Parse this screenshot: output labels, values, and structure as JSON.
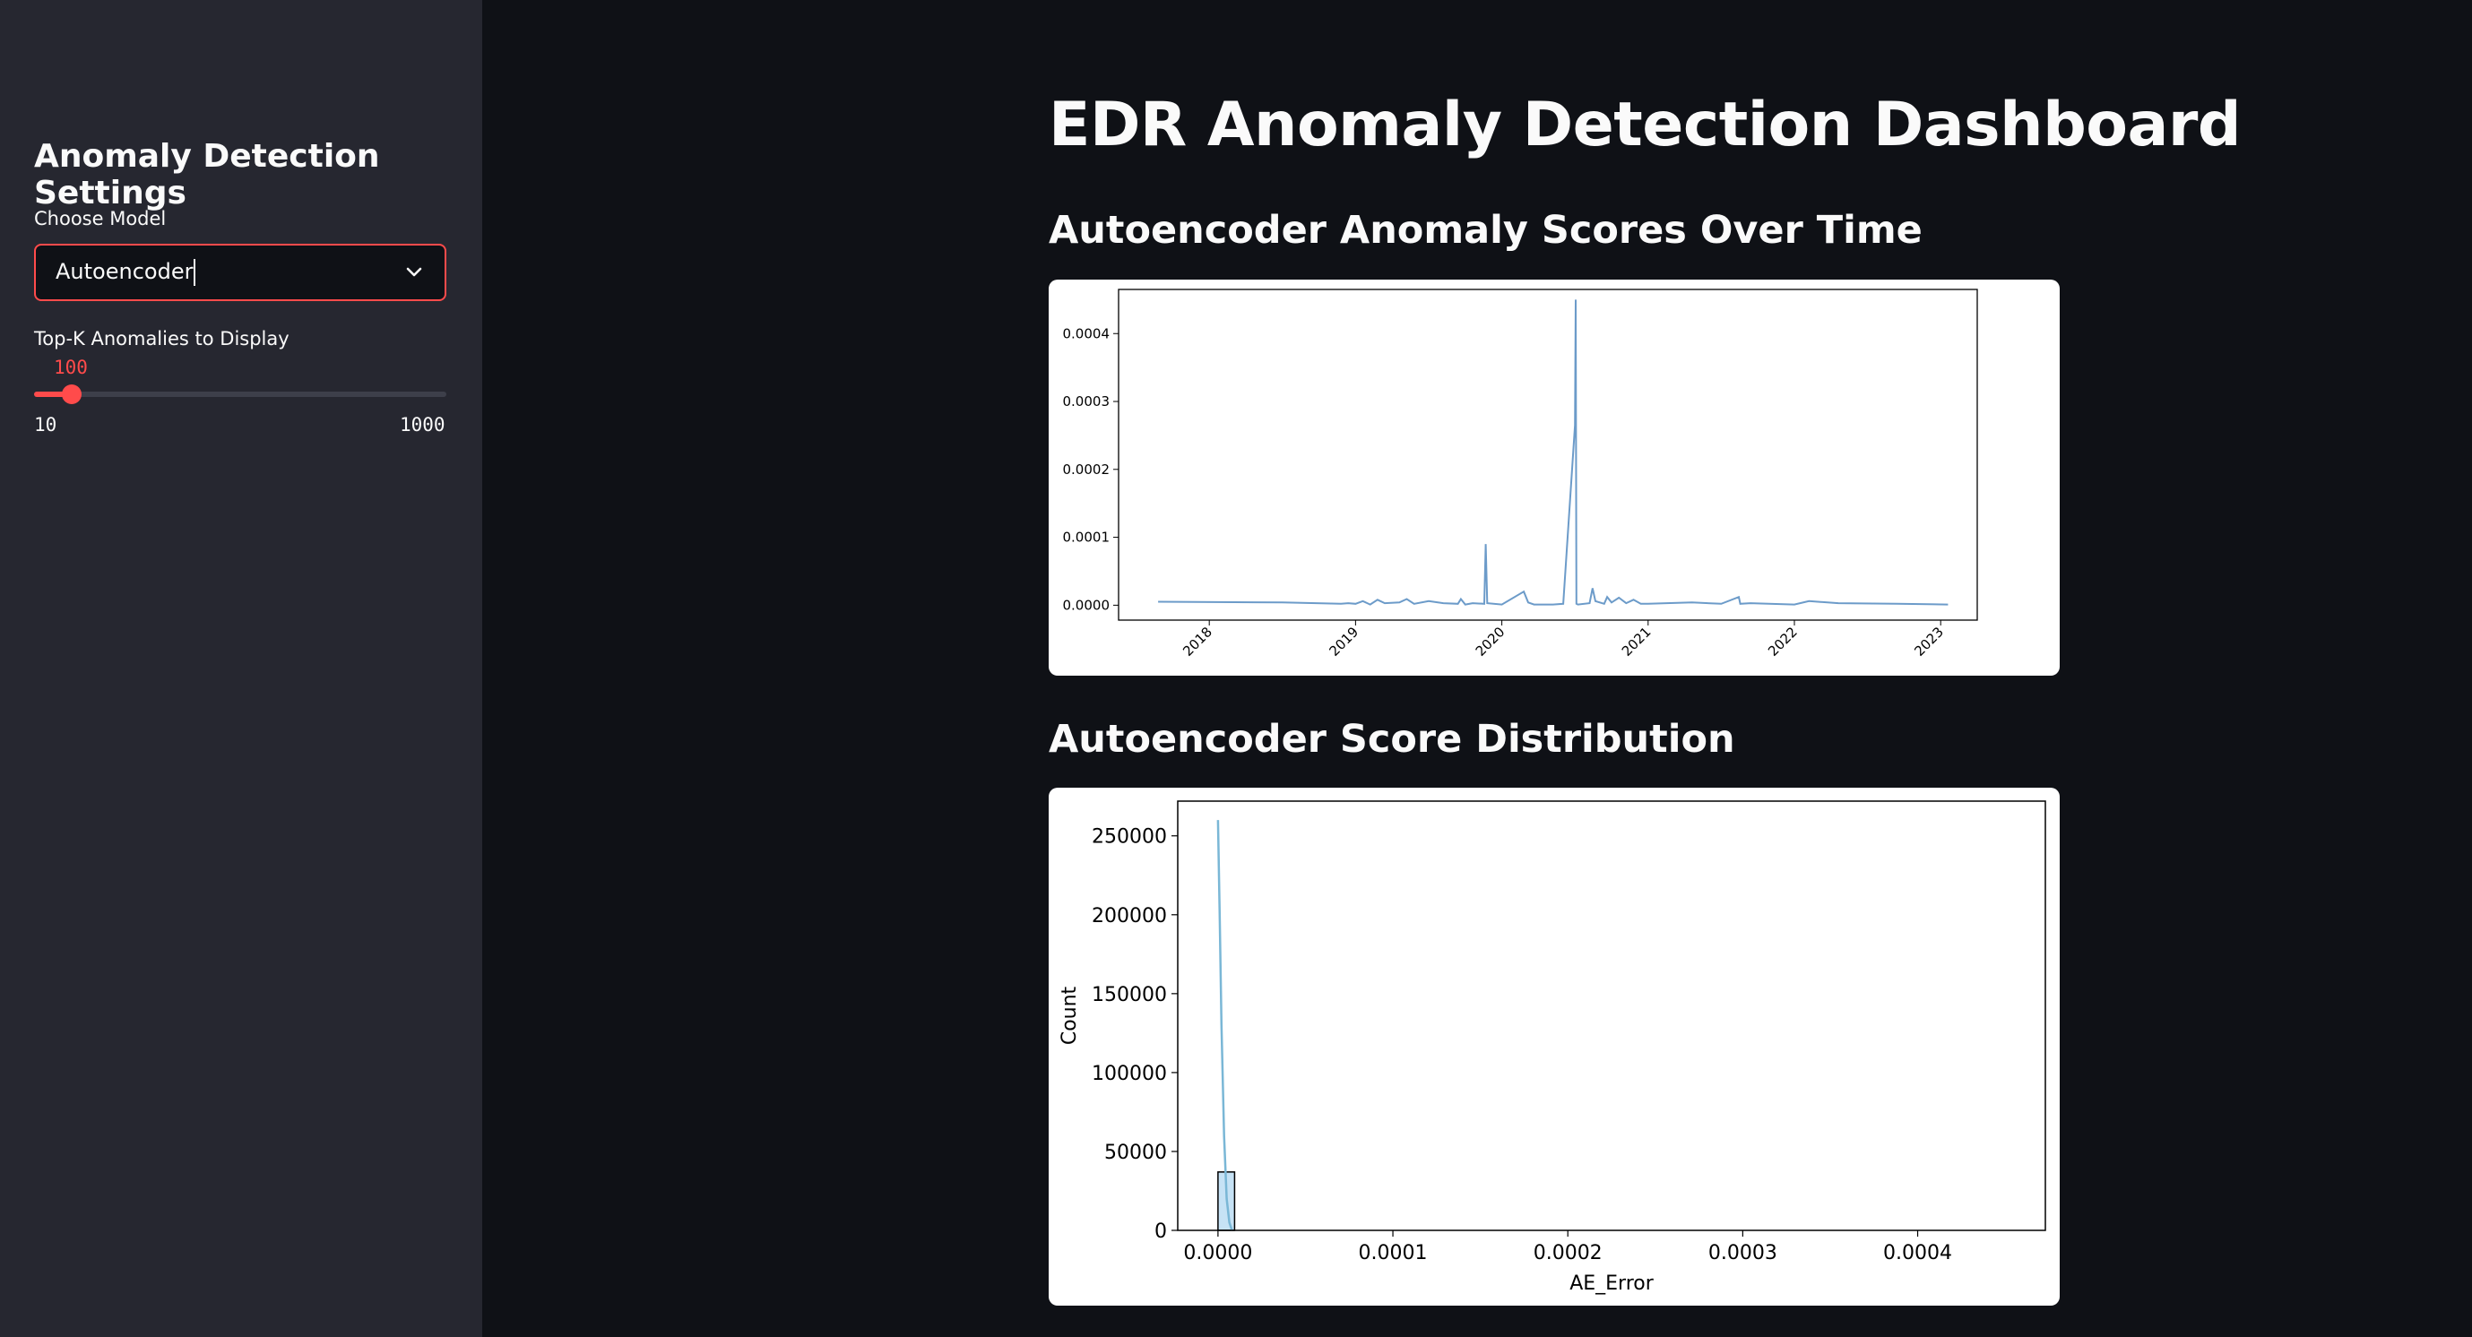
{
  "sidebar": {
    "title": "Anomaly Detection Settings",
    "model_label": "Choose Model",
    "model_value": "Autoencoder",
    "topk_label": "Top-K Anomalies to Display",
    "topk_value": "100",
    "topk_min": "10",
    "topk_max": "1000",
    "topk_fraction": 0.0909
  },
  "main": {
    "title": "EDR Anomaly Detection Dashboard",
    "section1_title": "Autoencoder Anomaly Scores Over Time",
    "section2_title": "Autoencoder Score Distribution"
  },
  "accent_color": "#ff4b4b",
  "chart_data": [
    {
      "type": "line",
      "title": "",
      "xlabel": "",
      "ylabel": "",
      "color": "#6c9bc9",
      "xlim": [
        2017.38,
        2023.25
      ],
      "ylim": [
        -2.2e-05,
        0.000465
      ],
      "x_ticks": [
        "2018",
        "2019",
        "2020",
        "2021",
        "2022",
        "2023"
      ],
      "x_tick_values": [
        2018,
        2019,
        2020,
        2021,
        2022,
        2023
      ],
      "y_ticks": [
        "0.0000",
        "0.0001",
        "0.0002",
        "0.0003",
        "0.0004"
      ],
      "y_tick_values": [
        0,
        0.0001,
        0.0002,
        0.0003,
        0.0004
      ],
      "x": [
        2017.65,
        2018.5,
        2018.9,
        2018.95,
        2019.0,
        2019.05,
        2019.1,
        2019.15,
        2019.2,
        2019.3,
        2019.35,
        2019.4,
        2019.5,
        2019.6,
        2019.7,
        2019.72,
        2019.75,
        2019.8,
        2019.88,
        2019.89,
        2019.9,
        2020.0,
        2020.15,
        2020.18,
        2020.22,
        2020.35,
        2020.42,
        2020.5,
        2020.505,
        2020.51,
        2020.52,
        2020.6,
        2020.62,
        2020.64,
        2020.7,
        2020.72,
        2020.75,
        2020.8,
        2020.85,
        2020.9,
        2020.95,
        2021.0,
        2021.3,
        2021.5,
        2021.62,
        2021.63,
        2021.7,
        2022.0,
        2022.1,
        2022.3,
        2022.7,
        2023.05
      ],
      "y": [
        5e-06,
        4e-06,
        2e-06,
        3e-06,
        2e-06,
        6e-06,
        1e-06,
        8e-06,
        3e-06,
        4e-06,
        9e-06,
        2e-06,
        6e-06,
        3e-06,
        2e-06,
        9e-06,
        1e-06,
        3e-06,
        2e-06,
        9e-05,
        3e-06,
        1e-06,
        2e-05,
        4e-06,
        1e-06,
        1e-06,
        2e-06,
        0.000265,
        0.00045,
        2e-06,
        1e-06,
        3e-06,
        2.5e-05,
        6e-06,
        2e-06,
        1.2e-05,
        4e-06,
        1.1e-05,
        3e-06,
        8e-06,
        2e-06,
        2e-06,
        4e-06,
        2e-06,
        1.2e-05,
        2e-06,
        3e-06,
        1e-06,
        6e-06,
        3e-06,
        2e-06,
        1e-06
      ]
    },
    {
      "type": "bar",
      "title": "",
      "xlabel": "AE_Error",
      "ylabel": "Count",
      "bar_color": "#c6e2f5",
      "kde_color": "#7ab7d6",
      "xlim": [
        -2.3e-05,
        0.000473
      ],
      "ylim": [
        0,
        272000
      ],
      "x_ticks": [
        "0.0000",
        "0.0001",
        "0.0002",
        "0.0003",
        "0.0004"
      ],
      "x_tick_values": [
        0,
        0.0001,
        0.0002,
        0.0003,
        0.0004
      ],
      "y_ticks": [
        "0",
        "50000",
        "100000",
        "150000",
        "200000",
        "250000"
      ],
      "y_tick_values": [
        0,
        50000,
        100000,
        150000,
        200000,
        250000
      ],
      "bins": [
        [
          0.0,
          9.5e-06
        ]
      ],
      "values": [
        37000
      ],
      "kde_x": [
        0.0,
        1e-06,
        2e-06,
        3.5e-06,
        5e-06,
        6.5e-06,
        8e-06
      ],
      "kde_y": [
        260000,
        200000,
        130000,
        60000,
        20000,
        5000,
        0
      ]
    }
  ]
}
